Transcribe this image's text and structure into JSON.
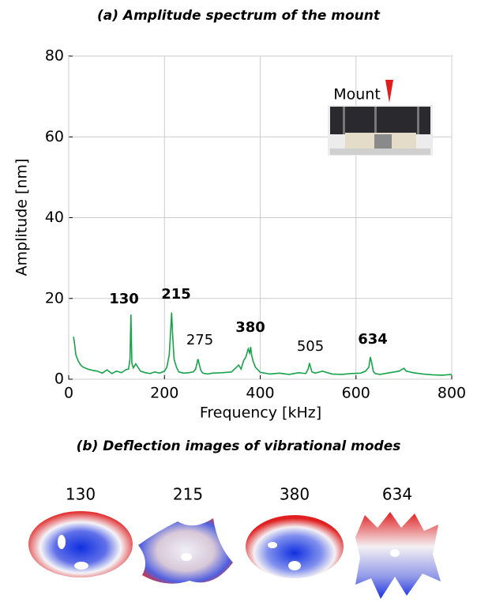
{
  "chart_data": {
    "type": "line",
    "title": "(a) Amplitude spectrum of the mount",
    "xlabel": "Frequency [kHz]",
    "ylabel": "Amplitude [nm]",
    "x": [
      10,
      12,
      15,
      20,
      25,
      30,
      40,
      50,
      60,
      70,
      80,
      90,
      100,
      110,
      120,
      125,
      128,
      130,
      132,
      135,
      140,
      150,
      160,
      170,
      180,
      190,
      200,
      205,
      210,
      213,
      215,
      217,
      220,
      225,
      230,
      240,
      250,
      260,
      265,
      270,
      273,
      276,
      280,
      290,
      300,
      320,
      340,
      355,
      360,
      365,
      370,
      375,
      378,
      380,
      382,
      385,
      390,
      400,
      420,
      440,
      460,
      480,
      495,
      500,
      503,
      505,
      508,
      515,
      530,
      550,
      570,
      590,
      610,
      620,
      627,
      630,
      633,
      636,
      640,
      650,
      670,
      690,
      700,
      705,
      720,
      740,
      760,
      780,
      800
    ],
    "values": [
      10.5,
      9,
      6,
      4.5,
      3.5,
      3,
      2.5,
      2.2,
      2,
      1.5,
      2.3,
      1.4,
      2,
      1.6,
      2.4,
      2.5,
      5,
      16,
      4,
      2.8,
      3.8,
      2,
      1.6,
      1.4,
      1.8,
      1.5,
      2,
      3,
      6,
      12,
      16.5,
      11,
      5,
      3,
      1.8,
      1.5,
      1.6,
      1.8,
      2.5,
      5,
      3.5,
      2.2,
      1.5,
      1.3,
      1.5,
      1.6,
      1.8,
      3.5,
      2.5,
      4.5,
      5.5,
      7.5,
      6.5,
      8,
      6,
      4.5,
      3,
      1.7,
      1.3,
      1.5,
      1.2,
      1.6,
      1.4,
      2.5,
      4,
      3,
      1.8,
      1.5,
      2,
      1.3,
      1.2,
      1.4,
      1.5,
      2,
      3,
      5.5,
      4,
      2,
      1.4,
      1.2,
      1.6,
      2,
      2.7,
      2,
      1.6,
      1.3,
      1.1,
      1.0,
      1.2
    ],
    "color": "#16a34a",
    "xlim": [
      0,
      800
    ],
    "xticks": [
      0,
      200,
      400,
      600,
      800
    ],
    "ylim": [
      0,
      80
    ],
    "yticks": [
      0,
      20,
      40,
      60,
      80
    ],
    "grid": true,
    "annotations": [
      {
        "text": "130",
        "bold": true
      },
      {
        "text": "215",
        "bold": true
      },
      {
        "text": "275",
        "bold": false
      },
      {
        "text": "380",
        "bold": true
      },
      {
        "text": "505",
        "bold": false
      },
      {
        "text": "634",
        "bold": true
      }
    ],
    "inset_label": "Mount"
  },
  "modes": {
    "title": "(b) Deflection images of vibrational modes",
    "labels": [
      "130",
      "215",
      "380",
      "634"
    ]
  }
}
